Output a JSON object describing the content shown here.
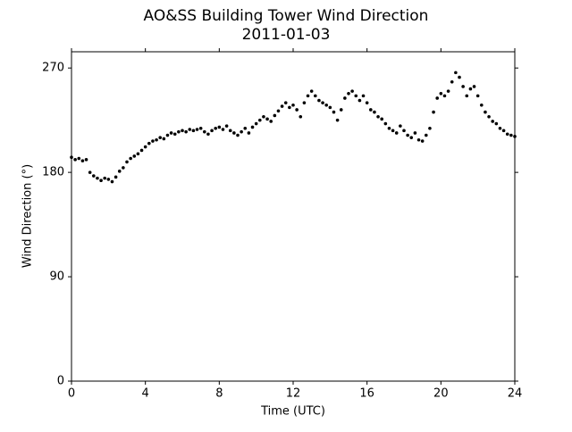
{
  "chart_data": {
    "type": "scatter",
    "title": "AO&SS Building Tower Wind Direction",
    "subtitle": "2011-01-03",
    "x_label": "Time (UTC)",
    "y_label": "Wind Direction (°)",
    "xlim": [
      0,
      24
    ],
    "xticks": [
      0,
      4,
      8,
      12,
      16,
      20,
      24
    ],
    "ylim": [
      0,
      284
    ],
    "yticks": [
      0,
      90,
      180,
      270
    ],
    "grid": false,
    "series": [
      {
        "color": "#000000",
        "x": [
          0,
          0.2,
          0.4,
          0.6,
          0.8,
          1,
          1.2,
          1.4,
          1.6,
          1.8,
          2,
          2.2,
          2.4,
          2.6,
          2.8,
          3,
          3.2,
          3.4,
          3.6,
          3.8,
          4,
          4.2,
          4.4,
          4.6,
          4.8,
          5,
          5.2,
          5.4,
          5.6,
          5.8,
          6,
          6.2,
          6.4,
          6.6,
          6.8,
          7,
          7.2,
          7.4,
          7.6,
          7.8,
          8,
          8.2,
          8.4,
          8.6,
          8.8,
          9,
          9.2,
          9.4,
          9.6,
          9.8,
          10,
          10.2,
          10.4,
          10.6,
          10.8,
          11,
          11.2,
          11.4,
          11.6,
          11.8,
          12,
          12.2,
          12.4,
          12.6,
          12.8,
          13,
          13.2,
          13.4,
          13.6,
          13.8,
          14,
          14.2,
          14.4,
          14.6,
          14.8,
          15,
          15.2,
          15.4,
          15.6,
          15.8,
          16,
          16.2,
          16.4,
          16.6,
          16.8,
          17,
          17.2,
          17.4,
          17.6,
          17.8,
          18,
          18.2,
          18.4,
          18.6,
          18.8,
          19,
          19.2,
          19.4,
          19.6,
          19.8,
          20,
          20.2,
          20.4,
          20.6,
          20.8,
          21,
          21.2,
          21.4,
          21.6,
          21.8,
          22,
          22.2,
          22.4,
          22.6,
          22.8,
          23,
          23.2,
          23.4,
          23.6,
          23.8,
          24
        ],
        "values": [
          193,
          191,
          192,
          190,
          191,
          180,
          177,
          175,
          173,
          175,
          174,
          172,
          176,
          181,
          184,
          189,
          192,
          194,
          196,
          199,
          202,
          205,
          207,
          208,
          210,
          209,
          212,
          214,
          213,
          215,
          216,
          215,
          217,
          216,
          217,
          218,
          215,
          213,
          216,
          218,
          219,
          217,
          220,
          216,
          214,
          212,
          215,
          218,
          214,
          219,
          222,
          225,
          228,
          226,
          224,
          229,
          233,
          237,
          240,
          236,
          238,
          234,
          228,
          240,
          246,
          250,
          246,
          242,
          240,
          238,
          236,
          232,
          225,
          234,
          244,
          248,
          250,
          246,
          242,
          246,
          240,
          234,
          232,
          228,
          226,
          222,
          218,
          216,
          214,
          220,
          216,
          212,
          210,
          214,
          208,
          207,
          212,
          218,
          232,
          244,
          248,
          246,
          250,
          258,
          266,
          262,
          254,
          246,
          252,
          254,
          246,
          238,
          232,
          228,
          224,
          222,
          218,
          216,
          213,
          212,
          211
        ]
      }
    ]
  }
}
